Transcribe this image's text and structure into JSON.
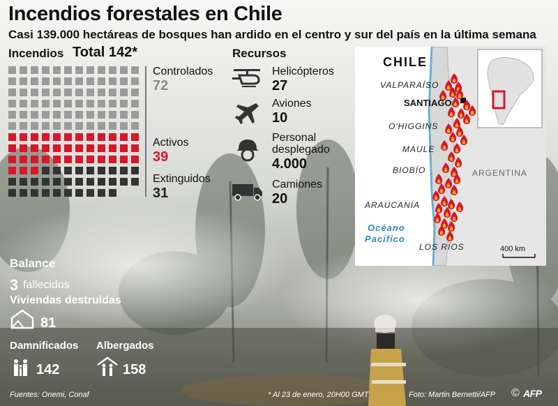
{
  "title": "Incendios forestales en Chile",
  "subtitle": "Casi 139.000 hectáreas de bosques han ardido en el centro y sur del país en la última semana",
  "fires": {
    "heading": "Incendios",
    "total_label": "Total 142*",
    "total": 142,
    "groups": [
      {
        "label": "Controlados",
        "value": "72",
        "count": 72,
        "color": "#9b9b9b"
      },
      {
        "label": "Activos",
        "value": "39",
        "count": 39,
        "color": "#d7172a"
      },
      {
        "label": "Extinguidos",
        "value": "31",
        "count": 31,
        "color": "#333333"
      }
    ]
  },
  "resources": {
    "heading": "Recursos",
    "items": [
      {
        "icon": "helicopter-icon",
        "label": "Helicópteros",
        "value": "27"
      },
      {
        "icon": "airplane-icon",
        "label": "Aviones",
        "value": "10"
      },
      {
        "icon": "firefighter-helmet-icon",
        "label_line1": "Personal",
        "label_line2": "desplegado",
        "value": "4.000"
      },
      {
        "icon": "truck-icon",
        "label": "Camiones",
        "value": "20"
      }
    ]
  },
  "map": {
    "country": "CHILE",
    "capital": "SANTIAGO",
    "neighbor": "ARGENTINA",
    "ocean_line1": "Océano",
    "ocean_line2": "Pacífico",
    "regions": [
      "VALPARAÍSO",
      "O'HIGGINS",
      "MAULE",
      "BIOBÍO",
      "ARAUCANÍA",
      "LOS RÍOS"
    ],
    "scale": "400 km",
    "fire_count_shown": 40
  },
  "balance": {
    "heading": "Balance",
    "deaths_value": "3",
    "deaths_label": "fallecidos",
    "homes_label": "Viviendas destruidas",
    "homes_value": "81",
    "affected_label": "Damnificados",
    "affected_value": "142",
    "shelter_label": "Albergados",
    "shelter_value": "158"
  },
  "footer": {
    "sources": "Fuentes: Onemi, Conaf",
    "note": "* Al 23 de enero, 20H00 GMT",
    "photo": "Foto: Martin Bernetti/AFP",
    "copyright": "©",
    "agency": "AFP"
  },
  "colors": {
    "red": "#d7172a",
    "gray": "#9b9b9b",
    "dark": "#333333",
    "map_land": "#e6e6e6",
    "map_border": "#6ab0d6",
    "ocean": "#2d8ac0"
  }
}
